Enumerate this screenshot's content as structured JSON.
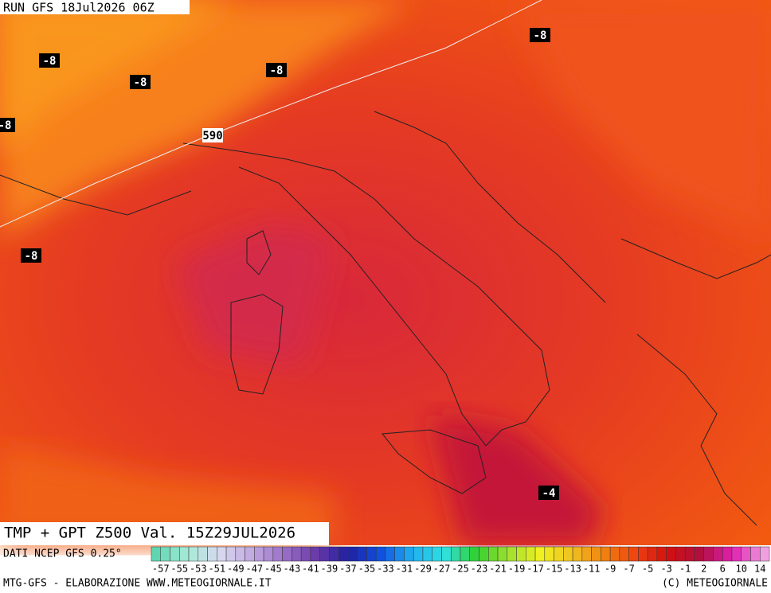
{
  "header": {
    "run": "RUN GFS 18Jul2026 06Z"
  },
  "map": {
    "labels": [
      "-8",
      "-8",
      "-8",
      "-8",
      "-8",
      "-8",
      "590",
      "-4"
    ]
  },
  "footer": {
    "product": "TMP + GPT Z500 Val. 15Z29JUL2026",
    "source": "DATI NCEP GFS 0.25°",
    "credit_left": "MTG-GFS - ELABORAZIONE WWW.METEOGIORNALE.IT",
    "credit_right": "(C) METEOGIORNALE"
  },
  "legend": {
    "ticks": [
      "-57",
      "-55",
      "-53",
      "-51",
      "-49",
      "-47",
      "-45",
      "-43",
      "-41",
      "-39",
      "-37",
      "-35",
      "-33",
      "-31",
      "-29",
      "-27",
      "-25",
      "-23",
      "-21",
      "-19",
      "-17",
      "-15",
      "-13",
      "-11",
      "-9",
      "-7",
      "-5",
      "-3",
      "-1",
      "2",
      "6",
      "10",
      "14"
    ],
    "colors": [
      "#5fd6b0",
      "#a8ead8",
      "#d8d8f0",
      "#c0a8e0",
      "#9a70c8",
      "#6a3aa8",
      "#2020a0",
      "#1050e0",
      "#20b0f0",
      "#30e0e0",
      "#30d030",
      "#a0e030",
      "#f0f020",
      "#f0c020",
      "#f08010",
      "#f04010",
      "#d01010",
      "#b01040",
      "#e020b0",
      "#f0a0e0"
    ]
  }
}
